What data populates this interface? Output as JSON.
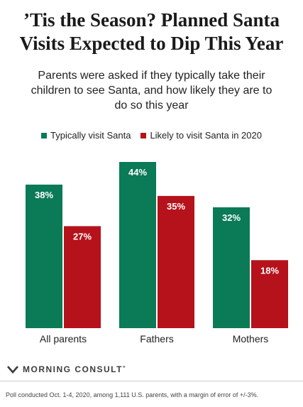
{
  "title": "’Tis the Season? Planned Santa Visits Expected to Dip This Year",
  "subtitle": "Parents were asked if they typically take their children to see Santa, and how likely they are to do so this year",
  "colors": {
    "series1": "#0b7a56",
    "series2": "#b5121b"
  },
  "chart_data": {
    "type": "bar",
    "categories": [
      "All parents",
      "Fathers",
      "Mothers"
    ],
    "series": [
      {
        "name": "Typically visit Santa",
        "values": [
          38,
          44,
          32
        ],
        "labels": [
          "38%",
          "44%",
          "32%"
        ],
        "color": "#0b7a56"
      },
      {
        "name": "Likely to visit Santa in 2020",
        "values": [
          27,
          35,
          18
        ],
        "labels": [
          "27%",
          "35%",
          "18%"
        ],
        "color": "#b5121b"
      }
    ],
    "ylim": [
      0,
      44
    ],
    "legend": "top-center",
    "grid": false
  },
  "brand": {
    "name": "MORNING CONSULT",
    "mark": "°"
  },
  "footnote": "Poll conducted Oct. 1-4, 2020, among 1,111 U.S. parents, with a margin of error of +/-3%."
}
